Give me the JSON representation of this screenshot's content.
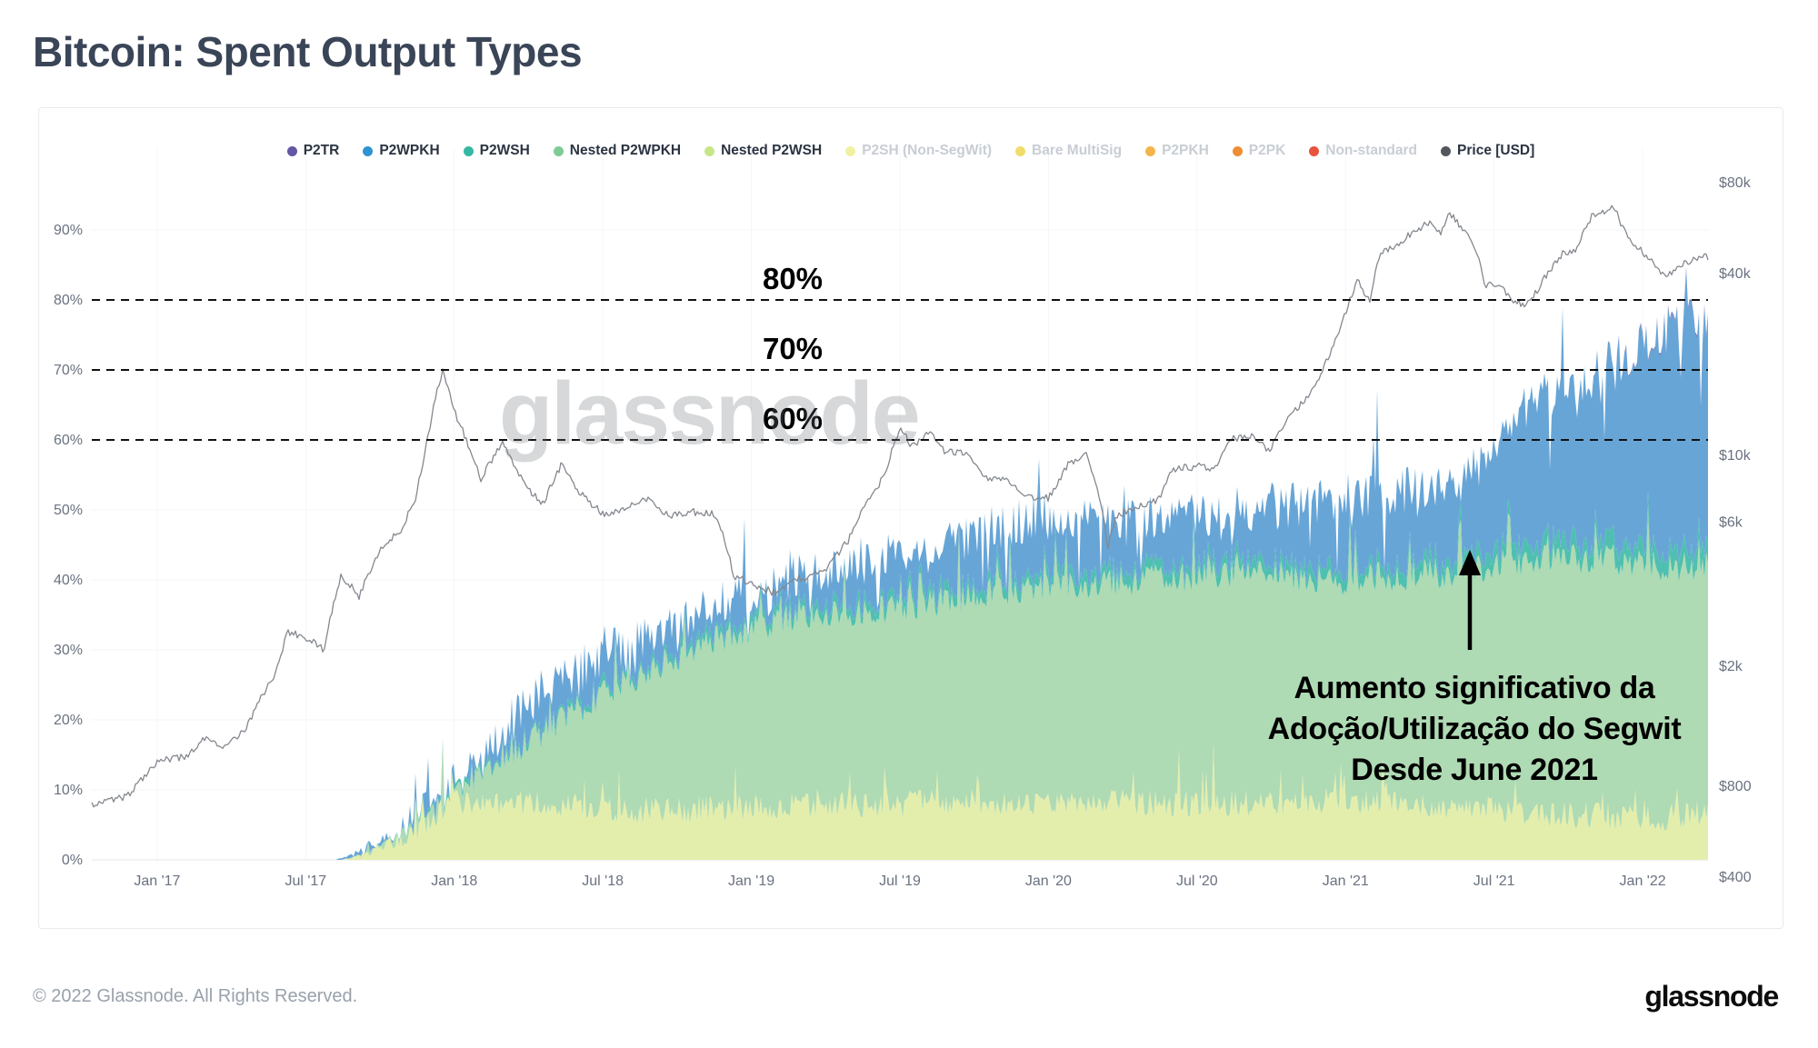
{
  "page": {
    "title": "Bitcoin: Spent Output Types",
    "footer_copyright": "© 2022 Glassnode. All Rights Reserved.",
    "brand_logo": "glassnode"
  },
  "watermark": {
    "text": "glassnode"
  },
  "annotation": {
    "lines": [
      "Aumento significativo da",
      "Adoção/Utilização do Segwit",
      "Desde June 2021"
    ]
  },
  "chart_data": {
    "type": "area",
    "stacked": true,
    "title": "Bitcoin: Spent Output Types",
    "grid": true,
    "legend_position": "top",
    "x_range_years": [
      2016.78,
      2022.22
    ],
    "x_ticks": [
      {
        "label": "Jan '17",
        "value": 2017.0
      },
      {
        "label": "Jul '17",
        "value": 2017.5
      },
      {
        "label": "Jan '18",
        "value": 2018.0
      },
      {
        "label": "Jul '18",
        "value": 2018.5
      },
      {
        "label": "Jan '19",
        "value": 2019.0
      },
      {
        "label": "Jul '19",
        "value": 2019.5
      },
      {
        "label": "Jan '20",
        "value": 2020.0
      },
      {
        "label": "Jul '20",
        "value": 2020.5
      },
      {
        "label": "Jan '21",
        "value": 2021.0
      },
      {
        "label": "Jul '21",
        "value": 2021.5
      },
      {
        "label": "Jan '22",
        "value": 2022.0
      }
    ],
    "y_axis_left": {
      "unit": "%",
      "range": [
        0,
        100
      ],
      "ticks": [
        {
          "label": "0%",
          "value": 0
        },
        {
          "label": "10%",
          "value": 10
        },
        {
          "label": "20%",
          "value": 20
        },
        {
          "label": "30%",
          "value": 30
        },
        {
          "label": "40%",
          "value": 40
        },
        {
          "label": "50%",
          "value": 50
        },
        {
          "label": "60%",
          "value": 60
        },
        {
          "label": "70%",
          "value": 70
        },
        {
          "label": "80%",
          "value": 80
        },
        {
          "label": "90%",
          "value": 90
        }
      ]
    },
    "y_axis_right": {
      "unit": "USD",
      "scale": "log",
      "ticks": [
        {
          "label": "$80k",
          "value": 80000
        },
        {
          "label": "$40k",
          "value": 40000
        },
        {
          "label": "$10k",
          "value": 10000
        },
        {
          "label": "$6k",
          "value": 6000
        },
        {
          "label": "$2k",
          "value": 2000
        },
        {
          "label": "$800",
          "value": 800
        },
        {
          "label": "$400",
          "value": 400
        }
      ]
    },
    "reference_lines": [
      {
        "label": "80%",
        "value": 80
      },
      {
        "label": "70%",
        "value": 70
      },
      {
        "label": "60%",
        "value": 60
      }
    ],
    "legend": [
      {
        "label": "P2TR",
        "color": "#6456a5",
        "active": true
      },
      {
        "label": "P2WPKH",
        "color": "#2e93d1",
        "active": true
      },
      {
        "label": "P2WSH",
        "color": "#35b8a3",
        "active": true
      },
      {
        "label": "Nested P2WPKH",
        "color": "#7ecb96",
        "active": true
      },
      {
        "label": "Nested P2WSH",
        "color": "#c8e687",
        "active": true
      },
      {
        "label": "P2SH (Non-SegWit)",
        "color": "#f2f0a3",
        "active": false
      },
      {
        "label": "Bare MultiSig",
        "color": "#f2dc6a",
        "active": false
      },
      {
        "label": "P2PKH",
        "color": "#f3b54a",
        "active": false
      },
      {
        "label": "P2PK",
        "color": "#ef8d33",
        "active": false
      },
      {
        "label": "Non-standard",
        "color": "#e85340",
        "active": false
      },
      {
        "label": "Price [USD]",
        "color": "#53575e",
        "active": true
      }
    ],
    "fill_colors": {
      "nested_p2wsh": "#e4eeac",
      "nested_p2wpkh": "#aedab4",
      "p2wsh": "#4fc0b0",
      "p2wpkh": "#67a5d7",
      "p2tr": "#6456a5",
      "price_line": "#84888f"
    },
    "stack_cumulative_tops_pct": {
      "nested_p2wsh": [
        [
          2016.78,
          0
        ],
        [
          2017.62,
          0
        ],
        [
          2017.72,
          1
        ],
        [
          2017.82,
          3
        ],
        [
          2017.9,
          5.5
        ],
        [
          2018.0,
          8
        ],
        [
          2018.3,
          8
        ],
        [
          2018.6,
          7
        ],
        [
          2019.0,
          7.5
        ],
        [
          2019.6,
          8
        ],
        [
          2020.0,
          8.5
        ],
        [
          2020.6,
          8
        ],
        [
          2021.0,
          8.5
        ],
        [
          2021.4,
          7.5
        ],
        [
          2021.7,
          6.5
        ],
        [
          2022.0,
          6
        ],
        [
          2022.22,
          6.5
        ]
      ],
      "nested_p2wpkh": [
        [
          2016.78,
          0
        ],
        [
          2017.62,
          0
        ],
        [
          2017.75,
          1.5
        ],
        [
          2017.9,
          6
        ],
        [
          2018.0,
          9.5
        ],
        [
          2018.1,
          13
        ],
        [
          2018.25,
          17
        ],
        [
          2018.4,
          21
        ],
        [
          2018.55,
          25
        ],
        [
          2018.7,
          28
        ],
        [
          2018.85,
          31
        ],
        [
          2019.0,
          33
        ],
        [
          2019.2,
          35
        ],
        [
          2019.5,
          36
        ],
        [
          2019.8,
          38
        ],
        [
          2020.0,
          39
        ],
        [
          2020.3,
          40
        ],
        [
          2020.7,
          41
        ],
        [
          2021.0,
          40
        ],
        [
          2021.3,
          41
        ],
        [
          2021.5,
          42
        ],
        [
          2021.7,
          43
        ],
        [
          2021.9,
          43
        ],
        [
          2022.0,
          42
        ],
        [
          2022.22,
          42
        ]
      ],
      "p2wsh_delta": [
        [
          2016.78,
          0
        ],
        [
          2017.7,
          0
        ],
        [
          2018.0,
          0.5
        ],
        [
          2018.5,
          0.8
        ],
        [
          2019.0,
          1.2
        ],
        [
          2020.0,
          1.5
        ],
        [
          2021.0,
          1.5
        ],
        [
          2021.6,
          2.2
        ],
        [
          2022.0,
          2.5
        ],
        [
          2022.22,
          2.5
        ]
      ],
      "p2wpkh_total_segwit": [
        [
          2016.78,
          0
        ],
        [
          2017.6,
          0
        ],
        [
          2017.68,
          1
        ],
        [
          2017.8,
          3.5
        ],
        [
          2017.9,
          6.5
        ],
        [
          2017.97,
          9
        ],
        [
          2018.05,
          13
        ],
        [
          2018.15,
          18
        ],
        [
          2018.3,
          24
        ],
        [
          2018.45,
          28
        ],
        [
          2018.6,
          31
        ],
        [
          2018.75,
          34
        ],
        [
          2018.9,
          37
        ],
        [
          2019.05,
          38
        ],
        [
          2019.2,
          41
        ],
        [
          2019.4,
          43
        ],
        [
          2019.6,
          44
        ],
        [
          2019.8,
          47
        ],
        [
          2019.95,
          49
        ],
        [
          2020.1,
          49
        ],
        [
          2020.25,
          48
        ],
        [
          2020.45,
          49
        ],
        [
          2020.65,
          50
        ],
        [
          2020.85,
          51
        ],
        [
          2021.0,
          52
        ],
        [
          2021.15,
          52.5
        ],
        [
          2021.3,
          53.5
        ],
        [
          2021.42,
          55
        ],
        [
          2021.5,
          60
        ],
        [
          2021.58,
          64
        ],
        [
          2021.68,
          66.5
        ],
        [
          2021.8,
          68.5
        ],
        [
          2021.9,
          71
        ],
        [
          2022.0,
          74
        ],
        [
          2022.1,
          76
        ],
        [
          2022.22,
          77
        ]
      ],
      "p2tr_delta": [
        [
          2016.78,
          0
        ],
        [
          2021.8,
          0
        ],
        [
          2022.0,
          0.15
        ],
        [
          2022.22,
          0.25
        ]
      ]
    },
    "price_usd": [
      [
        2016.78,
        700
      ],
      [
        2016.9,
        740
      ],
      [
        2017.0,
        970
      ],
      [
        2017.1,
        1000
      ],
      [
        2017.17,
        1180
      ],
      [
        2017.22,
        1050
      ],
      [
        2017.3,
        1250
      ],
      [
        2017.4,
        1900
      ],
      [
        2017.44,
        2600
      ],
      [
        2017.52,
        2450
      ],
      [
        2017.56,
        2250
      ],
      [
        2017.62,
        4000
      ],
      [
        2017.68,
        3400
      ],
      [
        2017.75,
        4900
      ],
      [
        2017.82,
        5600
      ],
      [
        2017.87,
        7200
      ],
      [
        2017.9,
        9800
      ],
      [
        2017.96,
        19000
      ],
      [
        2018.0,
        14000
      ],
      [
        2018.05,
        10500
      ],
      [
        2018.09,
        8300
      ],
      [
        2018.16,
        11000
      ],
      [
        2018.24,
        7900
      ],
      [
        2018.3,
        6900
      ],
      [
        2018.36,
        9300
      ],
      [
        2018.42,
        7500
      ],
      [
        2018.5,
        6400
      ],
      [
        2018.58,
        6700
      ],
      [
        2018.65,
        7200
      ],
      [
        2018.72,
        6300
      ],
      [
        2018.8,
        6500
      ],
      [
        2018.87,
        6400
      ],
      [
        2018.9,
        5600
      ],
      [
        2018.94,
        4000
      ],
      [
        2019.0,
        3750
      ],
      [
        2019.08,
        3500
      ],
      [
        2019.16,
        3900
      ],
      [
        2019.25,
        4100
      ],
      [
        2019.33,
        5300
      ],
      [
        2019.4,
        7200
      ],
      [
        2019.45,
        8600
      ],
      [
        2019.5,
        12300
      ],
      [
        2019.54,
        10700
      ],
      [
        2019.6,
        11800
      ],
      [
        2019.65,
        10300
      ],
      [
        2019.72,
        10200
      ],
      [
        2019.78,
        8500
      ],
      [
        2019.85,
        8300
      ],
      [
        2019.92,
        7300
      ],
      [
        2020.0,
        7200
      ],
      [
        2020.07,
        9400
      ],
      [
        2020.13,
        10200
      ],
      [
        2020.2,
        5000
      ],
      [
        2020.23,
        6300
      ],
      [
        2020.3,
        6800
      ],
      [
        2020.37,
        7100
      ],
      [
        2020.42,
        9000
      ],
      [
        2020.5,
        9200
      ],
      [
        2020.56,
        9100
      ],
      [
        2020.62,
        11300
      ],
      [
        2020.68,
        11700
      ],
      [
        2020.74,
        10300
      ],
      [
        2020.8,
        13000
      ],
      [
        2020.87,
        15500
      ],
      [
        2020.92,
        18500
      ],
      [
        2020.96,
        23500
      ],
      [
        2021.0,
        29500
      ],
      [
        2021.04,
        38500
      ],
      [
        2021.08,
        32000
      ],
      [
        2021.12,
        47500
      ],
      [
        2021.17,
        49000
      ],
      [
        2021.22,
        54500
      ],
      [
        2021.28,
        59000
      ],
      [
        2021.32,
        55000
      ],
      [
        2021.35,
        63000
      ],
      [
        2021.4,
        56000
      ],
      [
        2021.44,
        47000
      ],
      [
        2021.47,
        37000
      ],
      [
        2021.52,
        36000
      ],
      [
        2021.55,
        33500
      ],
      [
        2021.6,
        31500
      ],
      [
        2021.64,
        34500
      ],
      [
        2021.68,
        40000
      ],
      [
        2021.73,
        46500
      ],
      [
        2021.78,
        48500
      ],
      [
        2021.83,
        62000
      ],
      [
        2021.87,
        64500
      ],
      [
        2021.9,
        67000
      ],
      [
        2021.93,
        58000
      ],
      [
        2021.97,
        50500
      ],
      [
        2022.0,
        47000
      ],
      [
        2022.04,
        43500
      ],
      [
        2022.08,
        38500
      ],
      [
        2022.12,
        42500
      ],
      [
        2022.16,
        44000
      ],
      [
        2022.2,
        46500
      ],
      [
        2022.22,
        45500
      ]
    ]
  }
}
